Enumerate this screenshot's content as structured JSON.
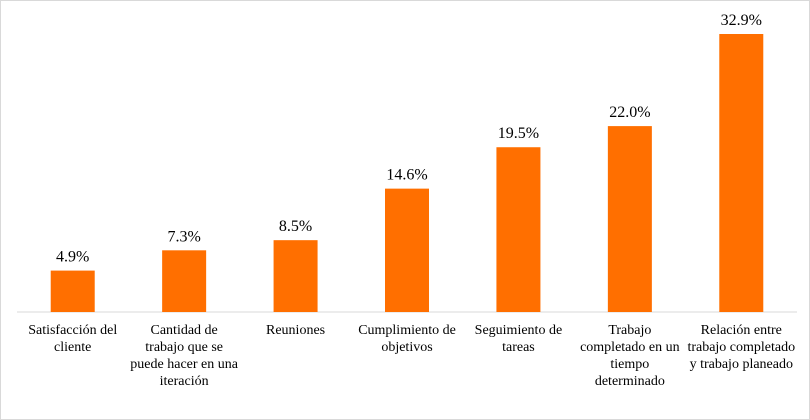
{
  "chart_data": {
    "type": "bar",
    "categories": [
      "Satisfacción del cliente",
      "Cantidad de trabajo que se puede hacer en una iteración",
      "Reuniones",
      "Cumplimiento de objetivos",
      "Seguimiento de tareas",
      "Trabajo completado en un tiempo determinado",
      "Relación entre trabajo completado y trabajo planeado"
    ],
    "values": [
      4.9,
      7.3,
      8.5,
      14.6,
      19.5,
      22.0,
      32.9
    ],
    "value_labels": [
      "4.9%",
      "7.3%",
      "8.5%",
      "14.6%",
      "19.5%",
      "22.0%",
      "32.9%"
    ],
    "color": "#ff6f00"
  }
}
